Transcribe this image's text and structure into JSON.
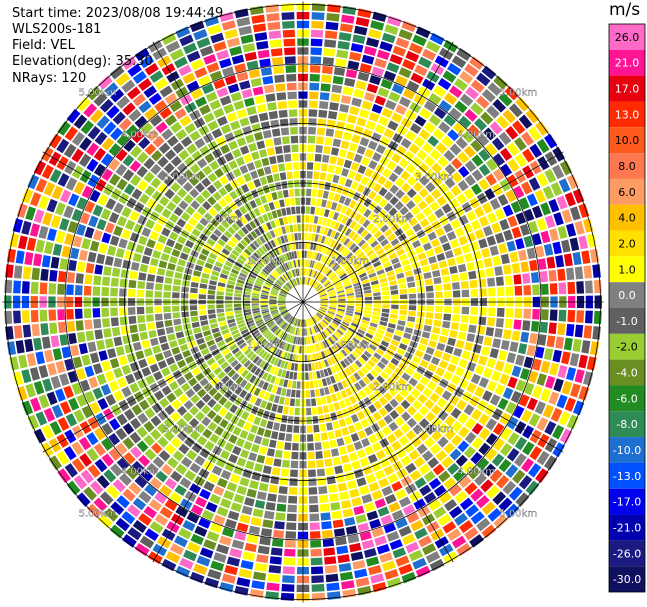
{
  "info": {
    "start_time": "Start time: 2023/08/08 19:44:49",
    "instrument": "WLS200s-181",
    "field": "Field: VEL",
    "elevation": "Elevation(deg): 35.30",
    "nrays": "NRays: 120"
  },
  "colorbar": {
    "unit": "m/s",
    "ticks": [
      "26.0",
      "21.0",
      "17.0",
      "13.0",
      "10.0",
      "8.0",
      "6.0",
      "4.0",
      "2.0",
      "1.0",
      "0.0",
      "-1.0",
      "-2.0",
      "-4.0",
      "-6.0",
      "-8.0",
      "-10.0",
      "-13.0",
      "-17.0",
      "-21.0",
      "-26.0",
      "-30.0"
    ],
    "colors": [
      "#ff69c8",
      "#ff1493",
      "#e8000f",
      "#ff2a00",
      "#ff5a1e",
      "#ff7850",
      "#ff9c64",
      "#ffc000",
      "#ffe000",
      "#ffff00",
      "#808080",
      "#606060",
      "#9acd32",
      "#6b8e23",
      "#228b22",
      "#2e8b57",
      "#1e6fd0",
      "#0050ff",
      "#0000ee",
      "#0000b0",
      "#1a1a80",
      "#101060"
    ]
  },
  "chart_data": {
    "type": "heatmap",
    "subtype": "radar-ppi",
    "field": "VEL",
    "units": "m/s",
    "nrays": 120,
    "elevation_deg": 35.3,
    "range_rings_km": [
      1.0,
      2.0,
      3.0,
      4.0,
      5.0
    ],
    "range_ring_labels": [
      "1.00km",
      "2.00km",
      "3.00km",
      "4.00km",
      "5.00km"
    ],
    "max_range_km": 5.05,
    "color_scale": {
      "boundaries": [
        -30,
        -26,
        -21,
        -17,
        -13,
        -10,
        -8,
        -6,
        -4,
        -2,
        -1,
        0,
        1,
        2,
        4,
        6,
        8,
        10,
        13,
        17,
        21,
        26,
        30
      ]
    }
  }
}
